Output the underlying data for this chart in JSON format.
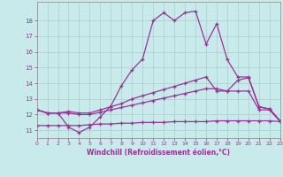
{
  "xlabel": "Windchill (Refroidissement éolien,°C)",
  "bg_color": "#c8eaea",
  "line_color": "#993399",
  "grid_color": "#aacccc",
  "x_values": [
    0,
    1,
    2,
    3,
    4,
    5,
    6,
    7,
    8,
    9,
    10,
    11,
    12,
    13,
    14,
    15,
    16,
    17,
    18,
    19,
    20,
    21,
    22,
    23
  ],
  "line1": [
    12.3,
    12.1,
    12.1,
    11.2,
    10.85,
    11.2,
    11.85,
    12.55,
    13.85,
    14.85,
    15.55,
    18.0,
    18.5,
    18.0,
    18.5,
    18.6,
    16.5,
    17.8,
    15.5,
    14.4,
    14.4,
    12.5,
    12.35,
    11.6
  ],
  "line2": [
    12.3,
    12.1,
    12.1,
    12.2,
    12.1,
    12.1,
    12.3,
    12.5,
    12.7,
    13.0,
    13.2,
    13.4,
    13.6,
    13.8,
    14.0,
    14.2,
    14.4,
    13.5,
    13.5,
    14.2,
    14.35,
    12.5,
    12.35,
    11.6
  ],
  "line3": [
    12.3,
    12.1,
    12.1,
    12.1,
    12.0,
    12.0,
    12.15,
    12.3,
    12.45,
    12.6,
    12.75,
    12.9,
    13.05,
    13.2,
    13.35,
    13.5,
    13.65,
    13.65,
    13.5,
    13.5,
    13.5,
    12.3,
    12.3,
    11.55
  ],
  "line4": [
    11.3,
    11.3,
    11.3,
    11.3,
    11.3,
    11.35,
    11.4,
    11.4,
    11.45,
    11.45,
    11.5,
    11.5,
    11.5,
    11.55,
    11.55,
    11.55,
    11.55,
    11.6,
    11.6,
    11.6,
    11.6,
    11.6,
    11.6,
    11.55
  ],
  "xlim": [
    0,
    23
  ],
  "ylim": [
    10.5,
    19.2
  ],
  "yticks": [
    11,
    12,
    13,
    14,
    15,
    16,
    17,
    18
  ],
  "xticks": [
    0,
    1,
    2,
    3,
    4,
    5,
    6,
    7,
    8,
    9,
    10,
    11,
    12,
    13,
    14,
    15,
    16,
    17,
    18,
    19,
    20,
    21,
    22,
    23
  ],
  "spine_color": "#888888"
}
